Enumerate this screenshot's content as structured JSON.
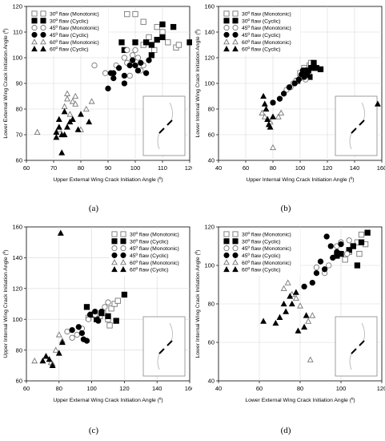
{
  "legend_entries": [
    {
      "label": "30º flaw (Monotonic)",
      "marker": "square",
      "filled": false
    },
    {
      "label": "30º flaw (Cyclic)",
      "marker": "square",
      "filled": true
    },
    {
      "label": "45º flaw (Monotonic)",
      "marker": "circle",
      "filled": false
    },
    {
      "label": "45º flaw (Cyclic)",
      "marker": "circle",
      "filled": true
    },
    {
      "label": "60º flaw (Monotonic)",
      "marker": "triangle",
      "filled": false
    },
    {
      "label": "60º flaw (Cyclic)",
      "marker": "triangle",
      "filled": true
    }
  ],
  "chart_data": [
    {
      "panel": "a",
      "caption": "(a)",
      "type": "scatter",
      "xlabel": "Upper External Wing Crack Initiation Angle (º)",
      "ylabel": "Lower External Wing Crack Initiation Angle (º)",
      "xlim": [
        60,
        120
      ],
      "ylim": [
        60,
        120
      ],
      "xticks": [
        "60",
        "70",
        "80",
        "90",
        "100",
        "110",
        "120"
      ],
      "yticks": [
        "60",
        "70",
        "80",
        "90",
        "100",
        "110",
        "120"
      ],
      "legend_position": "top-left",
      "inset": "bottom-right",
      "series": [
        {
          "points": [
            [
              97,
              117
            ],
            [
              100,
              117
            ],
            [
              103,
              114
            ],
            [
              103,
              105
            ],
            [
              105,
              108
            ],
            [
              107,
              103
            ],
            [
              110,
              110
            ],
            [
              112,
              106
            ],
            [
              115,
              104
            ],
            [
              116,
              105
            ],
            [
              108,
              112
            ]
          ]
        },
        {
          "points": [
            [
              95,
              106
            ],
            [
              96,
              103
            ],
            [
              100,
              106
            ],
            [
              104,
              106
            ],
            [
              106,
              105
            ],
            [
              108,
              107
            ],
            [
              110,
              108
            ],
            [
              110,
              113
            ],
            [
              114,
              112
            ],
            [
              120,
              106
            ],
            [
              106,
              101
            ]
          ]
        },
        {
          "points": [
            [
              85,
              97
            ],
            [
              89,
              94
            ],
            [
              93,
              97
            ],
            [
              96,
              100
            ],
            [
              97,
              103
            ],
            [
              97,
              98
            ],
            [
              99,
              101
            ],
            [
              100,
              103
            ],
            [
              101,
              100
            ],
            [
              102,
              95
            ],
            [
              98,
              93
            ],
            [
              103,
              97
            ]
          ]
        },
        {
          "points": [
            [
              90,
              88
            ],
            [
              91,
              94
            ],
            [
              92,
              94
            ],
            [
              94,
              96
            ],
            [
              96,
              90
            ],
            [
              98,
              97
            ],
            [
              99,
              99
            ],
            [
              100,
              97
            ],
            [
              101,
              95
            ],
            [
              104,
              94
            ],
            [
              105,
              99
            ],
            [
              92,
              92
            ],
            [
              102,
              98
            ],
            [
              96,
              93
            ]
          ]
        },
        {
          "points": [
            [
              64,
              71
            ],
            [
              72,
              72
            ],
            [
              74,
              81
            ],
            [
              75,
              86
            ],
            [
              75,
              84
            ],
            [
              76,
              78
            ],
            [
              77,
              76
            ],
            [
              77,
              83
            ],
            [
              78,
              82
            ],
            [
              78,
              85
            ],
            [
              80,
              72
            ],
            [
              82,
              80
            ],
            [
              84,
              83
            ]
          ]
        },
        {
          "points": [
            [
              71,
              69
            ],
            [
              71,
              71
            ],
            [
              72,
              73
            ],
            [
              72,
              76
            ],
            [
              73,
              70
            ],
            [
              73,
              63
            ],
            [
              74,
              79
            ],
            [
              74,
              70
            ],
            [
              75,
              73
            ],
            [
              76,
              75
            ],
            [
              77,
              76
            ],
            [
              79,
              72
            ],
            [
              80,
              78
            ],
            [
              83,
              75
            ]
          ]
        }
      ]
    },
    {
      "panel": "b",
      "caption": "(b)",
      "type": "scatter",
      "xlabel": "Upper Internal Wing Crack Initiation Angle (º)",
      "ylabel": "Lower Internal Wing Crack Initiation Angle (º)",
      "xlim": [
        40,
        160
      ],
      "ylim": [
        40,
        160
      ],
      "xticks": [
        "40",
        "60",
        "80",
        "100",
        "120",
        "140",
        "160"
      ],
      "yticks": [
        "40",
        "60",
        "80",
        "100",
        "120",
        "140",
        "160"
      ],
      "legend_position": "top-left",
      "inset": "bottom-right",
      "series": [
        {
          "points": [
            [
              100,
              108
            ],
            [
              103,
              112
            ],
            [
              105,
              110
            ],
            [
              107,
              114
            ],
            [
              110,
              113
            ],
            [
              108,
              116
            ]
          ]
        },
        {
          "points": [
            [
              98,
              102
            ],
            [
              102,
              105
            ],
            [
              104,
              108
            ],
            [
              106,
              110
            ],
            [
              108,
              112
            ],
            [
              110,
              116
            ],
            [
              112,
              112
            ],
            [
              115,
              111
            ],
            [
              107,
              105
            ],
            [
              103,
              110
            ]
          ]
        },
        {
          "points": [
            [
              90,
              95
            ],
            [
              93,
              97
            ],
            [
              95,
              100
            ],
            [
              97,
              102
            ],
            [
              100,
              104
            ],
            [
              104,
              103
            ]
          ]
        },
        {
          "points": [
            [
              85,
              88
            ],
            [
              88,
              92
            ],
            [
              92,
              97
            ],
            [
              96,
              100
            ],
            [
              99,
              103
            ],
            [
              101,
              107
            ],
            [
              102,
              110
            ],
            [
              103,
              105
            ],
            [
              105,
              108
            ],
            [
              80,
              85
            ]
          ]
        },
        {
          "points": [
            [
              72,
              77
            ],
            [
              74,
              74
            ],
            [
              76,
              72
            ],
            [
              78,
              70
            ],
            [
              84,
              74
            ],
            [
              86,
              77
            ],
            [
              80,
              50
            ]
          ]
        },
        {
          "points": [
            [
              73,
              90
            ],
            [
              74,
              84
            ],
            [
              75,
              80
            ],
            [
              76,
              72
            ],
            [
              77,
              68
            ],
            [
              78,
              66
            ],
            [
              80,
              74
            ],
            [
              157,
              84
            ]
          ]
        }
      ]
    },
    {
      "panel": "c",
      "caption": "(c)",
      "type": "scatter",
      "xlabel": "Upper External Wing Crack Initiation Angle (º)",
      "ylabel": "Upper Internal Wing Crack Initiation Angle (º)",
      "xlim": [
        60,
        160
      ],
      "ylim": [
        60,
        160
      ],
      "xticks": [
        "60",
        "80",
        "100",
        "120",
        "140",
        "160"
      ],
      "yticks": [
        "60",
        "80",
        "100",
        "120",
        "140",
        "160"
      ],
      "legend_position": "top-right",
      "inset": "bottom-right",
      "series": [
        {
          "points": [
            [
              98,
              101
            ],
            [
              102,
              103
            ],
            [
              105,
              102
            ],
            [
              107,
              104
            ],
            [
              110,
              100
            ],
            [
              112,
              107
            ],
            [
              114,
              110
            ],
            [
              116,
              112
            ],
            [
              111,
              96
            ]
          ]
        },
        {
          "points": [
            [
              97,
              108
            ],
            [
              100,
              103
            ],
            [
              103,
              100
            ],
            [
              106,
              104
            ],
            [
              110,
              102
            ],
            [
              115,
              99
            ],
            [
              120,
              116
            ]
          ]
        },
        {
          "points": [
            [
              85,
              92
            ],
            [
              88,
              88
            ],
            [
              91,
              90
            ],
            [
              94,
              94
            ],
            [
              98,
              100
            ],
            [
              102,
              103
            ],
            [
              108,
              108
            ],
            [
              110,
              111
            ]
          ]
        },
        {
          "points": [
            [
              88,
              93
            ],
            [
              92,
              95
            ],
            [
              94,
              91
            ],
            [
              95,
              87
            ],
            [
              97,
              86
            ],
            [
              99,
              103
            ],
            [
              102,
              105
            ],
            [
              104,
              99
            ],
            [
              106,
              105
            ]
          ]
        },
        {
          "points": [
            [
              65,
              73
            ],
            [
              72,
              76
            ],
            [
              75,
              72
            ],
            [
              78,
              80
            ],
            [
              80,
              90
            ],
            [
              82,
              86
            ],
            [
              76,
              71
            ]
          ]
        },
        {
          "points": [
            [
              70,
              73
            ],
            [
              72,
              76
            ],
            [
              74,
              74
            ],
            [
              76,
              70
            ],
            [
              80,
              78
            ],
            [
              82,
              85
            ],
            [
              81,
              156
            ]
          ]
        }
      ]
    },
    {
      "panel": "d",
      "caption": "(d)",
      "type": "scatter",
      "xlabel": "Lower External Wing Crack Initiation Angle (º)",
      "ylabel": "Lower Internal Wing Crack Initiation Angle (º)",
      "xlim": [
        40,
        120
      ],
      "ylim": [
        40,
        120
      ],
      "xticks": [
        "40",
        "60",
        "80",
        "100",
        "120"
      ],
      "yticks": [
        "40",
        "60",
        "80",
        "100",
        "120"
      ],
      "legend_position": "top-left",
      "inset": "bottom-right",
      "series": [
        {
          "points": [
            [
              102,
              103
            ],
            [
              104,
              107
            ],
            [
              106,
              110
            ],
            [
              108,
              112
            ],
            [
              110,
              116
            ],
            [
              112,
              111
            ],
            [
              109,
              106
            ]
          ]
        },
        {
          "points": [
            [
              98,
              105
            ],
            [
              100,
              106
            ],
            [
              104,
              108
            ],
            [
              106,
              110
            ],
            [
              108,
              100
            ],
            [
              110,
              112
            ],
            [
              113,
              117
            ]
          ]
        },
        {
          "points": [
            [
              88,
              99
            ],
            [
              92,
              96
            ],
            [
              94,
              100
            ],
            [
              96,
              104
            ],
            [
              98,
              110
            ],
            [
              100,
              112
            ],
            [
              103,
              106
            ],
            [
              104,
              113
            ]
          ]
        },
        {
          "points": [
            [
              82,
              89
            ],
            [
              86,
              91
            ],
            [
              88,
              96
            ],
            [
              90,
              102
            ],
            [
              92,
              98
            ],
            [
              93,
              115
            ],
            [
              95,
              110
            ],
            [
              96,
              104
            ],
            [
              98,
              107
            ],
            [
              100,
              111
            ]
          ]
        },
        {
          "points": [
            [
              72,
              88
            ],
            [
              74,
              91
            ],
            [
              76,
              85
            ],
            [
              78,
              83
            ],
            [
              80,
              79
            ],
            [
              84,
              71
            ],
            [
              86,
              74
            ],
            [
              85,
              51
            ]
          ]
        },
        {
          "points": [
            [
              62,
              71
            ],
            [
              68,
              70
            ],
            [
              70,
              73
            ],
            [
              72,
              80
            ],
            [
              73,
              76
            ],
            [
              75,
              84
            ],
            [
              76,
              80
            ],
            [
              78,
              86
            ],
            [
              79,
              66
            ],
            [
              82,
              68
            ],
            [
              83,
              74
            ]
          ]
        }
      ]
    }
  ]
}
